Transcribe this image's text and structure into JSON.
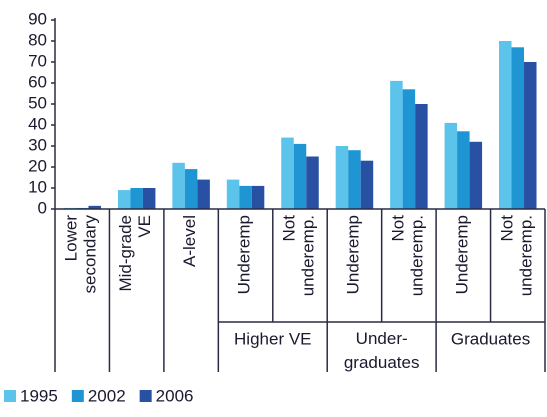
{
  "chart_data": {
    "type": "bar",
    "categories": [
      "Lower secondary",
      "Mid-grade VE",
      "A-level",
      "Underemp",
      "Not underemp.",
      "Underemp",
      "Not underemp.",
      "Underemp",
      "Not underemp."
    ],
    "groups": [
      {
        "label": "Higher VE",
        "members": [
          3,
          4
        ]
      },
      {
        "label": "Under-graduates",
        "members": [
          5,
          6
        ]
      },
      {
        "label": "Graduates",
        "members": [
          7,
          8
        ]
      }
    ],
    "series": [
      {
        "name": "1995",
        "color": "#5cc3ea",
        "values": [
          0.5,
          9,
          22,
          14,
          34,
          30,
          61,
          41,
          80
        ]
      },
      {
        "name": "2002",
        "color": "#1f95d3",
        "values": [
          0.5,
          10,
          19,
          11,
          31,
          28,
          57,
          37,
          77
        ]
      },
      {
        "name": "2006",
        "color": "#2851a3",
        "values": [
          1.5,
          10,
          14,
          11,
          25,
          23,
          50,
          32,
          70
        ]
      }
    ],
    "ylim": [
      0,
      90
    ],
    "yticks": [
      0,
      10,
      20,
      30,
      40,
      50,
      60,
      70,
      80,
      90
    ],
    "grid": false,
    "legend": "bottom"
  }
}
